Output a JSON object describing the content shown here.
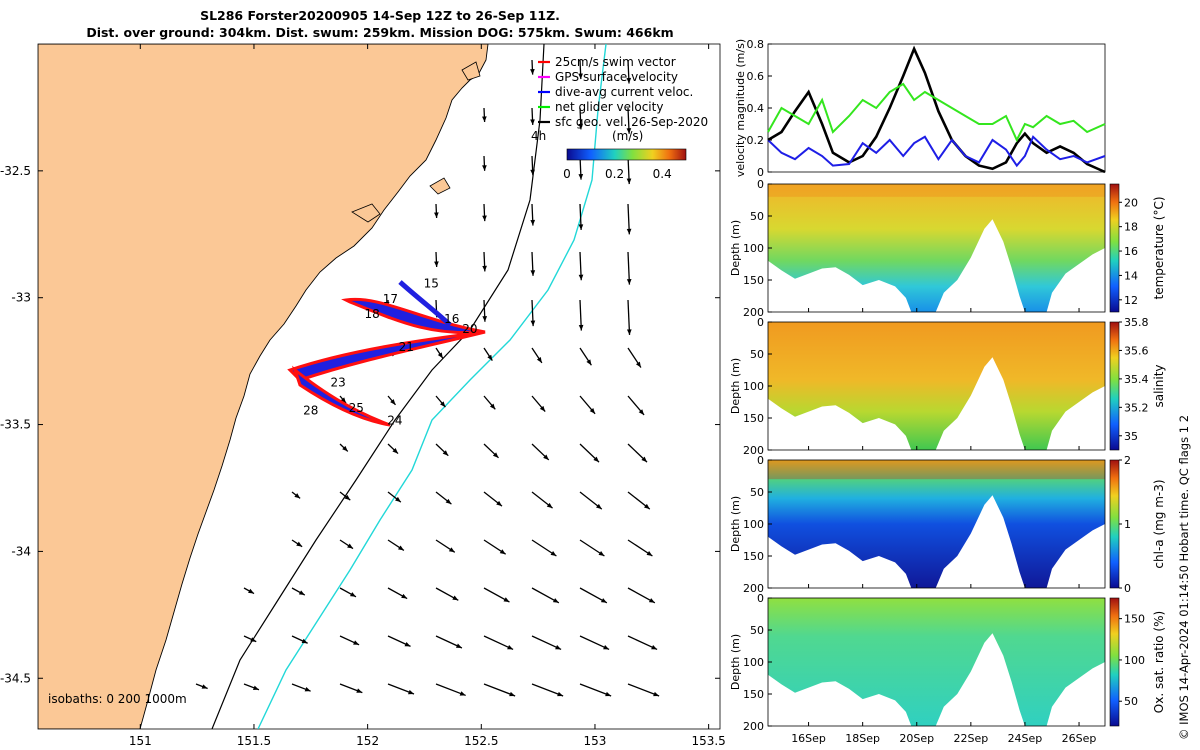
{
  "header": {
    "line1": "SL286 Forster20200905 14-Sep 12Z to 26-Sep 11Z.",
    "line2": "Dist. over ground: 304km. Dist. swum: 259km. Mission DOG: 575km. Swum: 466km"
  },
  "copyright": "© IMOS 14-Apr-2024 01:14:50 Hobart time. QC flags 1  2",
  "colors": {
    "land": "#fbc896",
    "temp_high": "#c0301c",
    "cmap_low": "#0f0f8c"
  },
  "chart_data": [
    {
      "type": "scatter",
      "name": "map",
      "x_ticks": [
        151,
        151.5,
        152,
        152.5,
        153,
        153.5
      ],
      "x_tick_labels": [
        "151",
        "151.5",
        "152",
        "152.5",
        "153",
        "153.5"
      ],
      "y_ticks": [
        -32.5,
        -33,
        -33.5,
        -34,
        -34.5
      ],
      "y_tick_labels": [
        "-32.5",
        "-33",
        "-33.5",
        "-34",
        "-34.5"
      ],
      "xlim": [
        150.55,
        153.55
      ],
      "ylim": [
        -34.7,
        -32.0
      ],
      "legend": [
        {
          "label": "25cm/s swim vector",
          "color": "#ff0000"
        },
        {
          "label": "GPS surface velocity",
          "color": "#ff00ff"
        },
        {
          "label": "dive-avg current veloc.",
          "color": "#0000ff"
        },
        {
          "label": "net glider velocity",
          "color": "#00ee00"
        },
        {
          "label": "sfc geo. vel. 26-Sep-2020",
          "color": "#000000"
        }
      ],
      "legend_extra": "4h",
      "colorbar": {
        "label": "(m/s)",
        "ticks": [
          "0",
          "0.2",
          "0.4"
        ],
        "range": [
          0,
          0.5
        ]
      },
      "isobath_label": "isobaths: 0   200  1000m",
      "track_labels": [
        {
          "text": "15",
          "lon": 152.28,
          "lat": -32.96
        },
        {
          "text": "17",
          "lon": 152.1,
          "lat": -33.02
        },
        {
          "text": "18",
          "lon": 152.02,
          "lat": -33.08
        },
        {
          "text": "16",
          "lon": 152.37,
          "lat": -33.1
        },
        {
          "text": "20",
          "lon": 152.45,
          "lat": -33.14
        },
        {
          "text": "21",
          "lon": 152.17,
          "lat": -33.21
        },
        {
          "text": "23",
          "lon": 151.87,
          "lat": -33.35
        },
        {
          "text": "28",
          "lon": 151.75,
          "lat": -33.46
        },
        {
          "text": "25",
          "lon": 151.95,
          "lat": -33.45
        },
        {
          "text": "24",
          "lon": 152.12,
          "lat": -33.5
        }
      ]
    },
    {
      "type": "line",
      "name": "velocity",
      "ylabel": "velocity magnitude (m/s)",
      "ylim": [
        0,
        0.8
      ],
      "y_ticks": [
        0,
        0.2,
        0.4,
        0.6,
        0.8
      ],
      "y_tick_labels": [
        "0",
        "0.2",
        "0.4",
        "0.6",
        "0.8"
      ],
      "xlim": [
        14.5,
        26.96
      ],
      "x": [
        14.5,
        15,
        15.5,
        16,
        16.5,
        16.9,
        17.5,
        18,
        18.5,
        19,
        19.5,
        19.9,
        20.3,
        20.8,
        21.3,
        21.8,
        22.3,
        22.8,
        23.3,
        23.7,
        24,
        24.3,
        24.8,
        25.3,
        25.8,
        26.3,
        26.96
      ],
      "series": [
        {
          "color": "#000000",
          "values": [
            0.2,
            0.25,
            0.38,
            0.5,
            0.3,
            0.12,
            0.06,
            0.1,
            0.22,
            0.4,
            0.6,
            0.77,
            0.62,
            0.38,
            0.2,
            0.1,
            0.04,
            0.02,
            0.06,
            0.18,
            0.24,
            0.18,
            0.12,
            0.16,
            0.12,
            0.05,
            0.0
          ]
        },
        {
          "color": "#1e1ee6",
          "values": [
            0.2,
            0.12,
            0.08,
            0.15,
            0.1,
            0.04,
            0.05,
            0.18,
            0.12,
            0.2,
            0.1,
            0.18,
            0.22,
            0.08,
            0.2,
            0.1,
            0.06,
            0.2,
            0.14,
            0.04,
            0.1,
            0.22,
            0.14,
            0.08,
            0.1,
            0.06,
            0.1
          ]
        },
        {
          "color": "#34e61e",
          "values": [
            0.25,
            0.4,
            0.35,
            0.3,
            0.45,
            0.25,
            0.35,
            0.45,
            0.4,
            0.5,
            0.55,
            0.45,
            0.5,
            0.45,
            0.4,
            0.35,
            0.3,
            0.3,
            0.35,
            0.2,
            0.3,
            0.28,
            0.35,
            0.3,
            0.32,
            0.25,
            0.3
          ]
        }
      ]
    },
    {
      "type": "heatmap",
      "name": "temperature",
      "ylabel": "Depth (m)",
      "cbar_label": "temperature (°C)",
      "cbar_ticks": [
        "12",
        "14",
        "16",
        "18",
        "20"
      ],
      "cbar_range": [
        11,
        21.5
      ],
      "y_tick_labels": [
        "0",
        "50",
        "100",
        "150",
        "200"
      ],
      "ylim": [
        0,
        200
      ]
    },
    {
      "type": "heatmap",
      "name": "salinity",
      "ylabel": "Depth (m)",
      "cbar_label": "salinity",
      "cbar_ticks": [
        "35",
        "35.2",
        "35.4",
        "35.6",
        "35.8"
      ],
      "cbar_range": [
        34.9,
        35.8
      ],
      "y_tick_labels": [
        "0",
        "50",
        "100",
        "150",
        "200"
      ],
      "ylim": [
        0,
        200
      ]
    },
    {
      "type": "heatmap",
      "name": "chl-a",
      "ylabel": "Depth (m)",
      "cbar_label": "chl-a (mg m-3)",
      "cbar_ticks": [
        "0",
        "1",
        "2"
      ],
      "cbar_range": [
        0,
        2
      ],
      "y_tick_labels": [
        "0",
        "50",
        "100",
        "150",
        "200"
      ],
      "ylim": [
        0,
        200
      ]
    },
    {
      "type": "heatmap",
      "name": "oxygen",
      "ylabel": "Depth (m)",
      "cbar_label": "Ox. sat. ratio (%)",
      "cbar_ticks": [
        "50",
        "100",
        "150"
      ],
      "cbar_range": [
        20,
        175
      ],
      "y_tick_labels": [
        "0",
        "50",
        "100",
        "150",
        "200"
      ],
      "ylim": [
        0,
        200
      ],
      "x_tick_labels": [
        "16Sep",
        "18Sep",
        "20Sep",
        "22Sep",
        "24Sep",
        "26Sep"
      ],
      "x_ticks": [
        16,
        18,
        20,
        22,
        24,
        26
      ]
    }
  ]
}
